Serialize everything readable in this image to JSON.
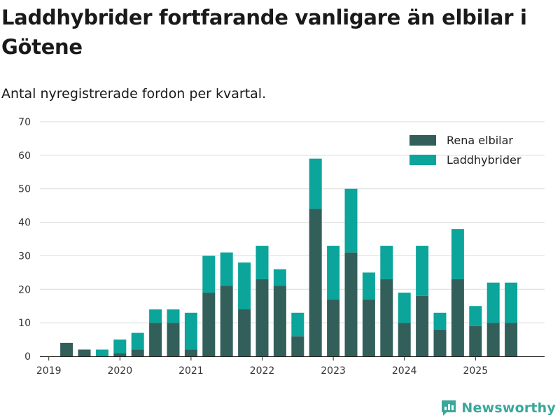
{
  "title": "Laddhybrider fortfarande vanligare än elbilar i Götene",
  "subtitle": "Antal nyregistrerade fordon per kvartal.",
  "brand": {
    "name": "Newsworthy",
    "icon": "newsworthy-logo-icon",
    "color": "#3aa79a"
  },
  "chart_data": {
    "type": "bar",
    "stacked": true,
    "categories": [
      "2019 Q2",
      "2019 Q3",
      "2019 Q4",
      "2020 Q1",
      "2020 Q2",
      "2020 Q3",
      "2020 Q4",
      "2021 Q1",
      "2021 Q2",
      "2021 Q3",
      "2021 Q4",
      "2022 Q1",
      "2022 Q2",
      "2022 Q3",
      "2022 Q4",
      "2023 Q1",
      "2023 Q2",
      "2023 Q3",
      "2023 Q4",
      "2024 Q1",
      "2024 Q2",
      "2024 Q3",
      "2024 Q4",
      "2025 Q1",
      "2025 Q2",
      "2025 Q3"
    ],
    "series": [
      {
        "name": "Rena elbilar",
        "color": "#335f5b",
        "values": [
          4,
          2,
          0,
          1,
          2,
          10,
          10,
          2,
          19,
          21,
          14,
          23,
          21,
          6,
          44,
          17,
          31,
          17,
          23,
          10,
          18,
          8,
          23,
          9,
          10,
          10
        ]
      },
      {
        "name": "Laddhybrider",
        "color": "#0ba59b",
        "values": [
          0,
          0,
          2,
          4,
          5,
          4,
          4,
          11,
          11,
          10,
          14,
          10,
          5,
          7,
          15,
          16,
          19,
          8,
          10,
          9,
          15,
          5,
          15,
          6,
          12,
          12
        ]
      }
    ],
    "x_ticks": [
      "2019",
      "2020",
      "2021",
      "2022",
      "2023",
      "2024",
      "2025"
    ],
    "y_ticks": [
      0,
      10,
      20,
      30,
      40,
      50,
      60,
      70
    ],
    "ylim": [
      0,
      70
    ],
    "grid": true,
    "legend": "top-right",
    "xlabel": "",
    "ylabel": ""
  }
}
